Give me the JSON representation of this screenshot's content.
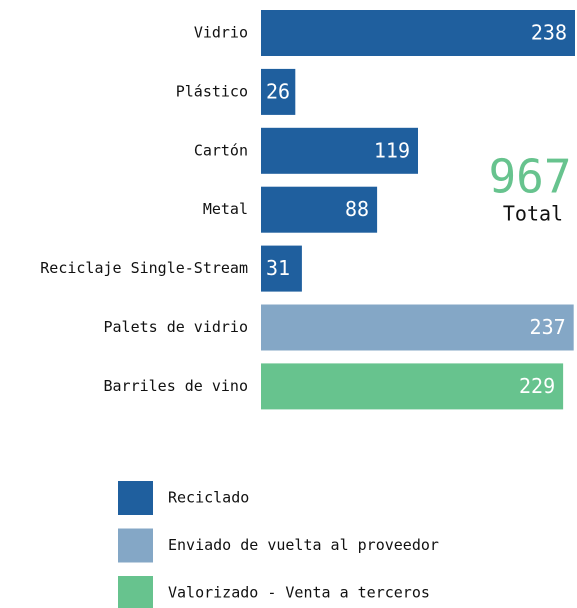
{
  "chart_data": {
    "type": "bar",
    "orientation": "horizontal",
    "categories": [
      "Vidrio",
      "Plástico",
      "Cartón",
      "Metal",
      "Reciclaje Single-Stream",
      "Palets de vidrio",
      "Barriles de vino"
    ],
    "values": [
      238,
      26,
      119,
      88,
      31,
      237,
      229
    ],
    "colors": [
      "#1f5f9e",
      "#1f5f9e",
      "#1f5f9e",
      "#1f5f9e",
      "#1f5f9e",
      "#84a7c6",
      "#67c38e"
    ],
    "legend": [
      {
        "name": "Reciclado",
        "color": "#1f5f9e"
      },
      {
        "name": "Enviado de vuelta al proveedor",
        "color": "#84a7c6"
      },
      {
        "name": "Valorizado - Venta a terceros",
        "color": "#67c38e"
      }
    ],
    "total": 967,
    "total_label": "Total",
    "total_color": "#67c38e"
  }
}
